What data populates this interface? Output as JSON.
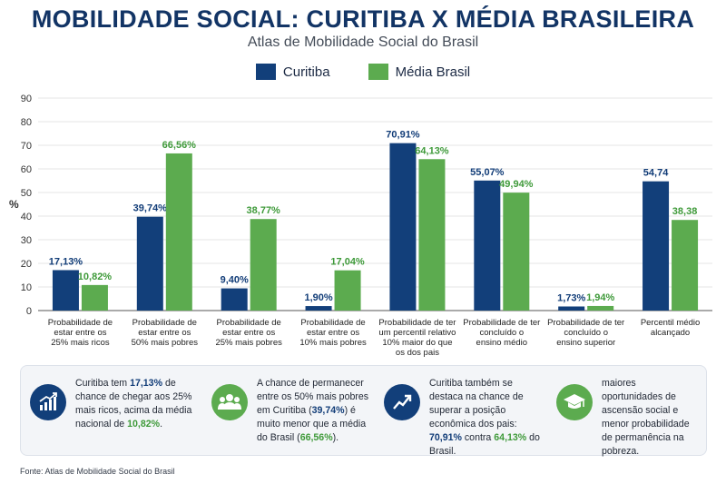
{
  "header": {
    "title": "MOBILIDADE SOCIAL: CURITIBA X MÉDIA BRASILEIRA",
    "subtitle": "Atlas de Mobilidade Social do Brasil"
  },
  "colors": {
    "curitiba": "#123f7a",
    "brasil": "#5cab4f",
    "title": "#123465"
  },
  "chart_data": {
    "type": "bar",
    "ylabel": "%",
    "ylim": [
      0,
      90
    ],
    "yticks": [
      0,
      10,
      20,
      30,
      40,
      50,
      60,
      70,
      80,
      90
    ],
    "grid": true,
    "legend": "top-center",
    "categories": [
      [
        "Probabilidade de",
        "estar entre os",
        "25% mais ricos"
      ],
      [
        "Probabilidade de",
        "estar entre os",
        "50% mais pobres"
      ],
      [
        "Probabilidade de",
        "estar entre os",
        "25% mais pobres"
      ],
      [
        "Probabilidade de",
        "estar entre os",
        "10% mais pobres"
      ],
      [
        "Probabilidade de ter",
        "um percentil relativo",
        "10% maior do que",
        "os dos pais"
      ],
      [
        "Probabilidade de ter",
        "concluído o",
        "ensino médio"
      ],
      [
        "Probabilidade de ter",
        "concluído o",
        "ensino superior"
      ],
      [
        "Percentil médio",
        "alcançado"
      ]
    ],
    "series": [
      {
        "name": "Curitiba",
        "values": [
          17.13,
          39.74,
          9.4,
          1.9,
          70.91,
          55.07,
          1.73,
          54.74
        ],
        "labels": [
          "17,13%",
          "39,74%",
          "9,40%",
          "1,90%",
          "70,91%",
          "55,07%",
          "1,73%",
          "54,74"
        ]
      },
      {
        "name": "Média Brasil",
        "values": [
          10.82,
          66.56,
          38.77,
          17.04,
          64.13,
          49.94,
          1.94,
          38.38
        ],
        "labels": [
          "10,82%",
          "66,56%",
          "38,77%",
          "17,04%",
          "64,13%",
          "49,94%",
          "1,94%",
          "38,38"
        ]
      }
    ]
  },
  "insights": [
    {
      "icon": "growth-chart-icon",
      "parts": [
        {
          "t": "Curitiba tem "
        },
        {
          "t": "17,13%",
          "c": "blue"
        },
        {
          "t": " de chance de chegar aos 25% mais ricos, acima da média nacional de "
        },
        {
          "t": "10,82%",
          "c": "green"
        },
        {
          "t": "."
        }
      ]
    },
    {
      "icon": "group-people-icon",
      "parts": [
        {
          "t": "A chance de permanecer entre os 50% mais pobres em Curitiba ("
        },
        {
          "t": "39,74%",
          "c": "blue"
        },
        {
          "t": ") é muito menor que a média do Brasil ("
        },
        {
          "t": "66,56%",
          "c": "green"
        },
        {
          "t": ")."
        }
      ]
    },
    {
      "icon": "trend-up-icon",
      "parts": [
        {
          "t": "Curitiba também se destaca na chance de superar a posição econômica dos pais: "
        },
        {
          "t": "70,91%",
          "c": "blue"
        },
        {
          "t": " contra "
        },
        {
          "t": "64,13%",
          "c": "green"
        },
        {
          "t": " do Brasil."
        }
      ]
    },
    {
      "icon": "graduation-cap-icon",
      "parts": [
        {
          "t": "maiores oportunidades de ascensão social e menor probabilidade de permanência na pobreza."
        }
      ]
    }
  ],
  "source": "Fonte: Atlas de Mobilidade Social do Brasil"
}
